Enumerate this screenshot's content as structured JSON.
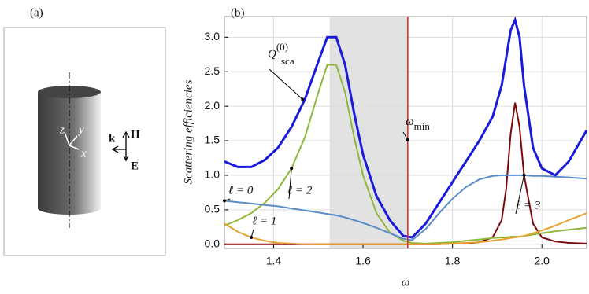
{
  "panel_a": {
    "label": "(a)",
    "axes": {
      "z": "z",
      "y": "y",
      "x": "x"
    },
    "wave": {
      "k": "k",
      "H": "H",
      "E": "E"
    }
  },
  "chart_data": {
    "type": "line",
    "panel_label": "(b)",
    "xlabel": "ω",
    "ylabel": "Scattering efficiencies",
    "x": [
      1.29,
      1.32,
      1.35,
      1.38,
      1.41,
      1.44,
      1.47,
      1.5,
      1.52,
      1.54,
      1.56,
      1.58,
      1.6,
      1.63,
      1.66,
      1.69,
      1.71,
      1.74,
      1.77,
      1.8,
      1.83,
      1.86,
      1.89,
      1.91,
      1.92,
      1.93,
      1.94,
      1.95,
      1.96,
      1.98,
      2.0,
      2.03,
      2.06,
      2.1
    ],
    "series": [
      {
        "color": "#1a1adb",
        "values": [
          1.2,
          1.12,
          1.12,
          1.22,
          1.4,
          1.7,
          2.1,
          2.65,
          3.0,
          3.0,
          2.6,
          1.9,
          1.3,
          0.7,
          0.35,
          0.12,
          0.1,
          0.3,
          0.6,
          0.9,
          1.2,
          1.5,
          1.85,
          2.3,
          2.7,
          3.1,
          3.25,
          3.0,
          2.3,
          1.4,
          1.1,
          1.0,
          1.2,
          1.65
        ]
      },
      {
        "name": "ℓ = 0",
        "color": "#5b8cc8",
        "values": [
          0.63,
          0.61,
          0.59,
          0.57,
          0.55,
          0.52,
          0.49,
          0.46,
          0.44,
          0.42,
          0.39,
          0.35,
          0.31,
          0.24,
          0.16,
          0.08,
          0.06,
          0.22,
          0.45,
          0.66,
          0.83,
          0.94,
          0.99,
          1.0,
          1.0,
          1.0,
          1.0,
          1.0,
          1.0,
          0.99,
          0.99,
          0.98,
          0.97,
          0.95
        ]
      },
      {
        "name": "ℓ = 1",
        "color": "#e8a030",
        "values": [
          0.3,
          0.18,
          0.1,
          0.05,
          0.02,
          0.01,
          0,
          0,
          0,
          0,
          0,
          0,
          0,
          0,
          0,
          0,
          0,
          0,
          0,
          0.01,
          0.02,
          0.03,
          0.05,
          0.07,
          0.08,
          0.09,
          0.1,
          0.11,
          0.12,
          0.16,
          0.2,
          0.27,
          0.35,
          0.45
        ]
      },
      {
        "name": "ℓ = 2",
        "color": "#8db83a",
        "values": [
          0.27,
          0.35,
          0.45,
          0.6,
          0.8,
          1.1,
          1.55,
          2.2,
          2.6,
          2.6,
          2.2,
          1.55,
          1.0,
          0.45,
          0.17,
          0.05,
          0.02,
          0.01,
          0.02,
          0.03,
          0.05,
          0.07,
          0.09,
          0.1,
          0.1,
          0.11,
          0.11,
          0.11,
          0.12,
          0.14,
          0.16,
          0.19,
          0.21,
          0.24
        ]
      },
      {
        "name": "ℓ = 3",
        "color": "#7a0a0a",
        "values": [
          0,
          0,
          0,
          0,
          0,
          0,
          0,
          0,
          0,
          0,
          0,
          0,
          0,
          0,
          0,
          0,
          0,
          0,
          0,
          0.01,
          0.01,
          0.03,
          0.1,
          0.35,
          0.8,
          1.6,
          2.05,
          1.7,
          1.0,
          0.3,
          0.1,
          0.04,
          0.02,
          0.01
        ]
      }
    ],
    "annotations": {
      "q_main": "Q",
      "q_sup": "(0)",
      "q_sub": "sca",
      "omega": "ω",
      "omega_sub": "min"
    },
    "omega_min": 1.7,
    "shaded_span": [
      1.525,
      1.7
    ],
    "shade_color": "#e2e2e2",
    "line_color": "#e02020",
    "xlim": [
      1.29,
      2.1
    ],
    "ylim": [
      -0.06,
      3.3
    ],
    "xticks": [
      1.4,
      1.6,
      1.8,
      {
        "value": 2,
        "label": "2.0"
      }
    ],
    "yticks": [
      {
        "value": 0,
        "label": "0.0"
      },
      0.5,
      {
        "value": 1,
        "label": "1.0"
      },
      1.5,
      {
        "value": 2,
        "label": "2.0"
      },
      2.5,
      {
        "value": 3,
        "label": "3.0"
      }
    ],
    "grid": true
  }
}
